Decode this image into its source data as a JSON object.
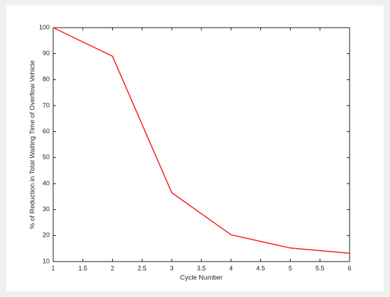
{
  "chart_data": {
    "type": "line",
    "x_label": "Cycle Number",
    "y_label": "% of Reduction in Total Waiting Time of Overflow Vehicle",
    "series": [
      {
        "color": "#ff2020",
        "x": [
          1,
          2,
          3,
          4,
          5,
          6
        ],
        "values": [
          100,
          89,
          36.5,
          20.3,
          15.2,
          13.2
        ]
      }
    ],
    "xlim": [
      1,
      6
    ],
    "xticks": [
      1,
      1.5,
      2,
      2.5,
      3,
      3.5,
      4,
      4.5,
      5,
      5.5,
      6
    ],
    "ylim": [
      10,
      100
    ],
    "yticks": [
      10,
      20,
      30,
      40,
      50,
      60,
      70,
      80,
      90,
      100
    ],
    "grid": false
  }
}
